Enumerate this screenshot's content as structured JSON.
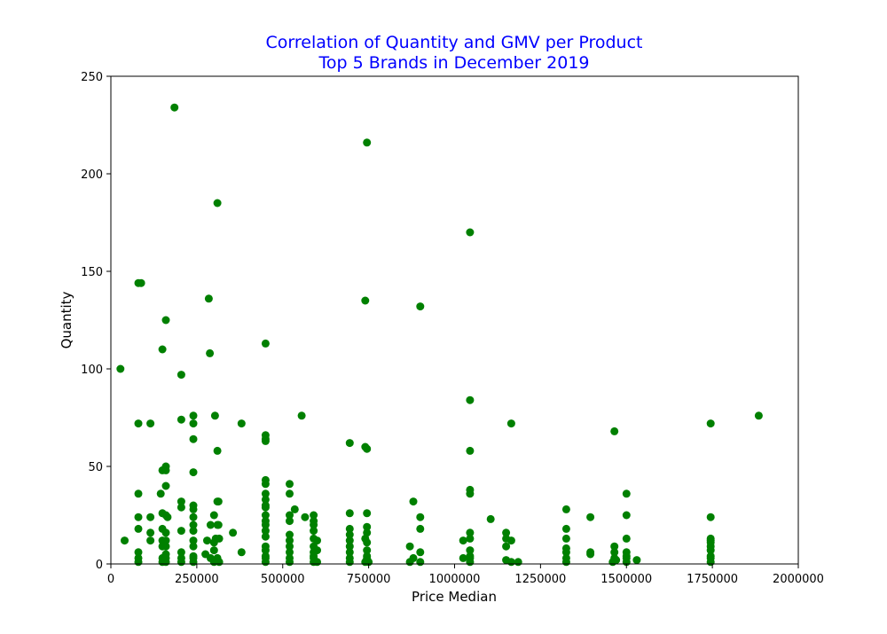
{
  "chart_data": {
    "type": "scatter",
    "title_lines": [
      "Correlation of Quantity and GMV per Product",
      "Top 5 Brands in December 2019"
    ],
    "xlabel": "Price Median",
    "ylabel": "Quantity",
    "xlim": [
      0,
      2000000
    ],
    "ylim": [
      0,
      250
    ],
    "xticks": [
      0,
      250000,
      500000,
      750000,
      1000000,
      1250000,
      1500000,
      1750000,
      2000000
    ],
    "xtick_labels": [
      "0",
      "250000",
      "500000",
      "750000",
      "1000000",
      "1250000",
      "1500000",
      "1750000",
      "2000000"
    ],
    "yticks": [
      0,
      50,
      100,
      150,
      200,
      250
    ],
    "ytick_labels": [
      "0",
      "50",
      "100",
      "150",
      "200",
      "250"
    ],
    "grid": false,
    "marker_color": "#008000",
    "title_color": "#0000ff",
    "points": [
      [
        185000,
        234
      ],
      [
        745000,
        216
      ],
      [
        310000,
        185
      ],
      [
        1045000,
        170
      ],
      [
        80000,
        144
      ],
      [
        88000,
        144
      ],
      [
        285000,
        136
      ],
      [
        740000,
        135
      ],
      [
        900000,
        132
      ],
      [
        160000,
        125
      ],
      [
        450000,
        113
      ],
      [
        150000,
        110
      ],
      [
        288000,
        108
      ],
      [
        28000,
        100
      ],
      [
        205000,
        97
      ],
      [
        1045000,
        84
      ],
      [
        555000,
        76
      ],
      [
        240000,
        76
      ],
      [
        303000,
        76
      ],
      [
        1885000,
        76
      ],
      [
        205000,
        74
      ],
      [
        80000,
        72
      ],
      [
        115000,
        72
      ],
      [
        240000,
        72
      ],
      [
        380000,
        72
      ],
      [
        1165000,
        72
      ],
      [
        1745000,
        72
      ],
      [
        1465000,
        68
      ],
      [
        450000,
        66
      ],
      [
        450000,
        64
      ],
      [
        240000,
        64
      ],
      [
        450000,
        63
      ],
      [
        695000,
        62
      ],
      [
        740000,
        60
      ],
      [
        745000,
        59
      ],
      [
        310000,
        58
      ],
      [
        1045000,
        58
      ],
      [
        160000,
        50
      ],
      [
        150000,
        48
      ],
      [
        160000,
        48
      ],
      [
        240000,
        47
      ],
      [
        450000,
        43
      ],
      [
        520000,
        41
      ],
      [
        450000,
        41
      ],
      [
        160000,
        40
      ],
      [
        1045000,
        38
      ],
      [
        80000,
        36
      ],
      [
        145000,
        36
      ],
      [
        450000,
        36
      ],
      [
        520000,
        36
      ],
      [
        1045000,
        36
      ],
      [
        1500000,
        36
      ],
      [
        450000,
        33
      ],
      [
        205000,
        32
      ],
      [
        310000,
        32
      ],
      [
        313000,
        32
      ],
      [
        880000,
        32
      ],
      [
        450000,
        30
      ],
      [
        240000,
        30
      ],
      [
        205000,
        29
      ],
      [
        450000,
        29
      ],
      [
        240000,
        28
      ],
      [
        535000,
        28
      ],
      [
        1325000,
        28
      ],
      [
        150000,
        26
      ],
      [
        695000,
        26
      ],
      [
        745000,
        26
      ],
      [
        160000,
        25
      ],
      [
        115000,
        24
      ],
      [
        80000,
        24
      ],
      [
        165000,
        24
      ],
      [
        240000,
        24
      ],
      [
        300000,
        25
      ],
      [
        450000,
        25
      ],
      [
        520000,
        25
      ],
      [
        565000,
        24
      ],
      [
        590000,
        25
      ],
      [
        900000,
        24
      ],
      [
        1395000,
        24
      ],
      [
        1500000,
        25
      ],
      [
        1745000,
        24
      ],
      [
        450000,
        22
      ],
      [
        520000,
        22
      ],
      [
        590000,
        22
      ],
      [
        1105000,
        23
      ],
      [
        290000,
        20
      ],
      [
        310000,
        20
      ],
      [
        313000,
        20
      ],
      [
        240000,
        20
      ],
      [
        450000,
        20
      ],
      [
        590000,
        20
      ],
      [
        695000,
        18
      ],
      [
        745000,
        19
      ],
      [
        80000,
        18
      ],
      [
        150000,
        18
      ],
      [
        205000,
        17
      ],
      [
        240000,
        17
      ],
      [
        355000,
        16
      ],
      [
        115000,
        16
      ],
      [
        160000,
        16
      ],
      [
        450000,
        17
      ],
      [
        520000,
        15
      ],
      [
        590000,
        17
      ],
      [
        695000,
        15
      ],
      [
        745000,
        16
      ],
      [
        900000,
        18
      ],
      [
        1045000,
        16
      ],
      [
        1150000,
        16
      ],
      [
        1325000,
        18
      ],
      [
        40000,
        12
      ],
      [
        115000,
        12
      ],
      [
        150000,
        12
      ],
      [
        160000,
        12
      ],
      [
        240000,
        12
      ],
      [
        280000,
        12
      ],
      [
        305000,
        13
      ],
      [
        300000,
        11
      ],
      [
        315000,
        13
      ],
      [
        450000,
        14
      ],
      [
        520000,
        12
      ],
      [
        590000,
        13
      ],
      [
        600000,
        12
      ],
      [
        695000,
        12
      ],
      [
        740000,
        13
      ],
      [
        745000,
        11
      ],
      [
        1025000,
        12
      ],
      [
        1045000,
        13
      ],
      [
        1150000,
        13
      ],
      [
        1165000,
        12
      ],
      [
        1325000,
        13
      ],
      [
        1500000,
        13
      ],
      [
        1745000,
        13
      ],
      [
        1745000,
        12
      ],
      [
        1745000,
        11
      ],
      [
        1745000,
        9
      ],
      [
        1150000,
        9
      ],
      [
        1325000,
        8
      ],
      [
        1465000,
        9
      ],
      [
        870000,
        9
      ],
      [
        590000,
        9
      ],
      [
        695000,
        9
      ],
      [
        450000,
        9
      ],
      [
        520000,
        9
      ],
      [
        240000,
        9
      ],
      [
        160000,
        9
      ],
      [
        150000,
        9
      ],
      [
        80000,
        6
      ],
      [
        205000,
        6
      ],
      [
        300000,
        7
      ],
      [
        380000,
        6
      ],
      [
        450000,
        7
      ],
      [
        520000,
        6
      ],
      [
        590000,
        6
      ],
      [
        600000,
        7
      ],
      [
        695000,
        6
      ],
      [
        745000,
        7
      ],
      [
        900000,
        6
      ],
      [
        1045000,
        7
      ],
      [
        1325000,
        6
      ],
      [
        1395000,
        6
      ],
      [
        1465000,
        6
      ],
      [
        1500000,
        6
      ],
      [
        1745000,
        7
      ],
      [
        275000,
        5
      ],
      [
        160000,
        5
      ],
      [
        240000,
        4
      ],
      [
        450000,
        4
      ],
      [
        590000,
        4
      ],
      [
        745000,
        4
      ],
      [
        1045000,
        4
      ],
      [
        1395000,
        5
      ],
      [
        1500000,
        4
      ],
      [
        1745000,
        4
      ],
      [
        80000,
        3
      ],
      [
        150000,
        3
      ],
      [
        160000,
        3
      ],
      [
        205000,
        3
      ],
      [
        240000,
        3
      ],
      [
        290000,
        3
      ],
      [
        310000,
        3
      ],
      [
        450000,
        3
      ],
      [
        520000,
        3
      ],
      [
        590000,
        3
      ],
      [
        695000,
        3
      ],
      [
        745000,
        3
      ],
      [
        880000,
        3
      ],
      [
        1025000,
        3
      ],
      [
        1045000,
        3
      ],
      [
        1325000,
        3
      ],
      [
        1465000,
        3
      ],
      [
        1500000,
        3
      ],
      [
        1530000,
        2
      ],
      [
        1745000,
        3
      ],
      [
        80000,
        1
      ],
      [
        150000,
        1
      ],
      [
        160000,
        1
      ],
      [
        205000,
        1
      ],
      [
        240000,
        1
      ],
      [
        300000,
        1
      ],
      [
        315000,
        1
      ],
      [
        450000,
        1
      ],
      [
        520000,
        1
      ],
      [
        590000,
        1
      ],
      [
        600000,
        1
      ],
      [
        695000,
        1
      ],
      [
        740000,
        1
      ],
      [
        750000,
        1
      ],
      [
        870000,
        1
      ],
      [
        900000,
        1
      ],
      [
        1045000,
        1
      ],
      [
        1150000,
        2
      ],
      [
        1165000,
        1
      ],
      [
        1185000,
        1
      ],
      [
        1325000,
        1
      ],
      [
        1460000,
        1
      ],
      [
        1470000,
        2
      ],
      [
        1500000,
        1
      ],
      [
        1745000,
        1
      ]
    ]
  }
}
